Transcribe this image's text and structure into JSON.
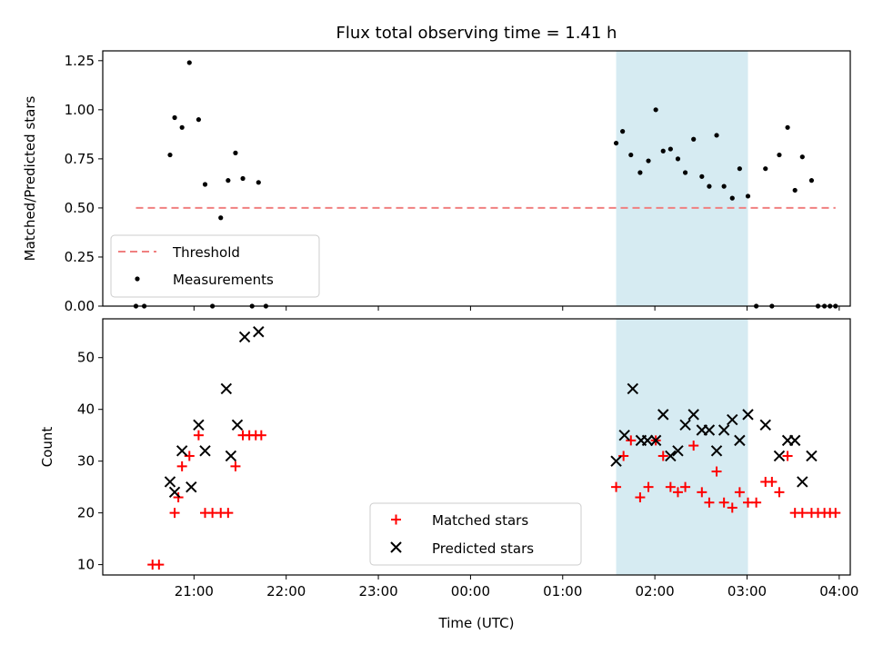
{
  "chart_data": [
    {
      "type": "scatter",
      "title": "Flux total observing time = 1.41 h",
      "xlabel": "",
      "ylabel": "Matched/Predicted stars",
      "ylim": [
        0,
        1.3
      ],
      "yticks": [
        "0.00",
        "0.25",
        "0.50",
        "0.75",
        "1.00",
        "1.25"
      ],
      "ytick_values": [
        0,
        0.25,
        0.5,
        0.75,
        1.0,
        1.25
      ],
      "xlim_hours": [
        20.01,
        28.12
      ],
      "xtick_hours": [
        21,
        22,
        23,
        24,
        25,
        26,
        27,
        28
      ],
      "grid": false,
      "legend_position": "lower-left",
      "highlight_span_hours": [
        25.58,
        27.01
      ],
      "threshold": {
        "name": "Threshold",
        "value": 0.5,
        "x_range_hours": [
          20.37,
          27.96
        ],
        "color": "#f08080"
      },
      "series": [
        {
          "name": "Measurements",
          "color": "#000000",
          "x_hours": [
            20.37,
            20.46,
            20.74,
            20.79,
            20.87,
            20.95,
            21.05,
            21.12,
            21.2,
            21.29,
            21.37,
            21.45,
            21.53,
            21.63,
            21.7,
            21.78,
            25.58,
            25.65,
            25.74,
            25.84,
            25.93,
            26.01,
            26.09,
            26.17,
            26.25,
            26.33,
            26.42,
            26.51,
            26.59,
            26.67,
            26.75,
            26.84,
            26.92,
            27.01,
            27.1,
            27.2,
            27.27,
            27.35,
            27.44,
            27.52,
            27.6,
            27.7,
            27.77,
            27.84,
            27.9,
            27.96
          ],
          "y": [
            0,
            0,
            0.77,
            0.96,
            0.91,
            1.24,
            0.95,
            0.62,
            0,
            0.45,
            0.64,
            0.78,
            0.65,
            0,
            0.63,
            0,
            0.83,
            0.89,
            0.77,
            0.68,
            0.74,
            1.0,
            0.79,
            0.8,
            0.75,
            0.68,
            0.85,
            0.66,
            0.61,
            0.87,
            0.61,
            0.55,
            0.7,
            0.56,
            0,
            0.7,
            0,
            0.77,
            0.91,
            0.59,
            0.76,
            0.64,
            0,
            0,
            0,
            0
          ]
        }
      ]
    },
    {
      "type": "scatter",
      "title": "",
      "xlabel": "Time (UTC)",
      "ylabel": "Count",
      "ylim": [
        8,
        57.5
      ],
      "yticks": [
        "10",
        "20",
        "30",
        "40",
        "50"
      ],
      "ytick_values": [
        10,
        20,
        30,
        40,
        50
      ],
      "xlim_hours": [
        20.01,
        28.12
      ],
      "xtick_labels": [
        "21:00",
        "22:00",
        "23:00",
        "00:00",
        "01:00",
        "02:00",
        "03:00",
        "04:00"
      ],
      "xtick_hours": [
        21,
        22,
        23,
        24,
        25,
        26,
        27,
        28
      ],
      "grid": false,
      "legend_position": "lower-center",
      "highlight_span_hours": [
        25.58,
        27.01
      ],
      "series": [
        {
          "name": "Matched stars",
          "marker": "plus",
          "color": "#ff0000",
          "x_hours": [
            20.55,
            20.62,
            20.79,
            20.83,
            20.87,
            20.95,
            21.05,
            21.12,
            21.2,
            21.29,
            21.37,
            21.45,
            21.53,
            21.6,
            21.67,
            21.73,
            25.58,
            25.66,
            25.74,
            25.84,
            25.93,
            26.01,
            26.09,
            26.17,
            26.25,
            26.33,
            26.42,
            26.51,
            26.59,
            26.67,
            26.75,
            26.84,
            26.92,
            27.01,
            27.1,
            27.2,
            27.27,
            27.35,
            27.44,
            27.52,
            27.6,
            27.7,
            27.77,
            27.84,
            27.9,
            27.96
          ],
          "y": [
            10,
            10,
            20,
            23,
            29,
            31,
            35,
            20,
            20,
            20,
            20,
            29,
            35,
            35,
            35,
            35,
            25,
            31,
            34,
            23,
            25,
            34,
            31,
            25,
            24,
            25,
            33,
            24,
            22,
            28,
            22,
            21,
            24,
            22,
            22,
            26,
            26,
            24,
            31,
            20,
            20,
            20,
            20,
            20,
            20,
            20
          ]
        },
        {
          "name": "Predicted stars",
          "marker": "x",
          "color": "#000000",
          "x_hours": [
            20.74,
            20.79,
            20.87,
            20.97,
            21.05,
            21.12,
            21.35,
            21.4,
            21.47,
            21.55,
            21.7,
            25.58,
            25.67,
            25.76,
            25.85,
            25.92,
            26.01,
            26.09,
            26.17,
            26.25,
            26.33,
            26.42,
            26.51,
            26.59,
            26.67,
            26.75,
            26.84,
            26.92,
            27.01,
            27.2,
            27.35,
            27.44,
            27.52,
            27.6,
            27.7
          ],
          "y": [
            26,
            24,
            32,
            25,
            37,
            32,
            44,
            31,
            37,
            54,
            55,
            30,
            35,
            44,
            34,
            34,
            34,
            39,
            31,
            32,
            37,
            39,
            36,
            36,
            32,
            36,
            38,
            34,
            39,
            37,
            31,
            34,
            34,
            26,
            31
          ]
        }
      ]
    }
  ]
}
